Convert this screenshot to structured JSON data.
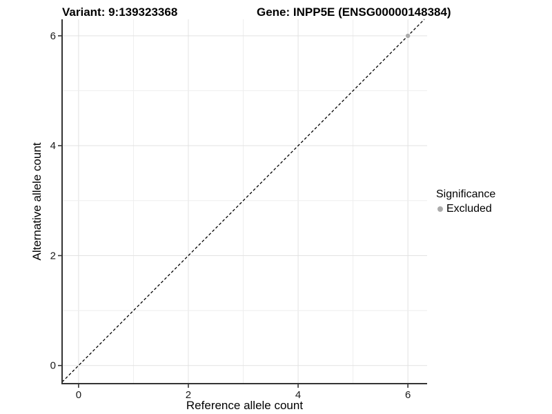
{
  "header": {
    "variant_title": "Variant: 9:139323368",
    "gene_title": "Gene: INPP5E (ENSG00000148384)"
  },
  "chart_data": {
    "type": "scatter",
    "xlabel": "Reference allele count",
    "ylabel": "Alternative allele count",
    "xlim": [
      -0.3,
      6.35
    ],
    "ylim": [
      -0.33,
      6.3
    ],
    "xticks": [
      0,
      2,
      4,
      6
    ],
    "yticks": [
      0,
      2,
      4,
      6
    ],
    "grid_interval": 1,
    "grid_on": true,
    "points": [
      {
        "x": 6,
        "y": 6,
        "series": "Excluded"
      }
    ],
    "identity_line": {
      "style": "dashed",
      "slope": 1,
      "intercept": 0
    },
    "legend": {
      "position": "right",
      "title": "Significance",
      "items": [
        {
          "label": "Excluded",
          "color": "#ababab"
        }
      ]
    },
    "colors": {
      "background": "#ffffff",
      "grid_major": "#e2e2e2",
      "grid_minor": "#eeeeee",
      "axis_line": "#333333",
      "tick_mark": "#333333",
      "tick_label": "#1a1a1a",
      "dashed_line": "#000000"
    }
  }
}
